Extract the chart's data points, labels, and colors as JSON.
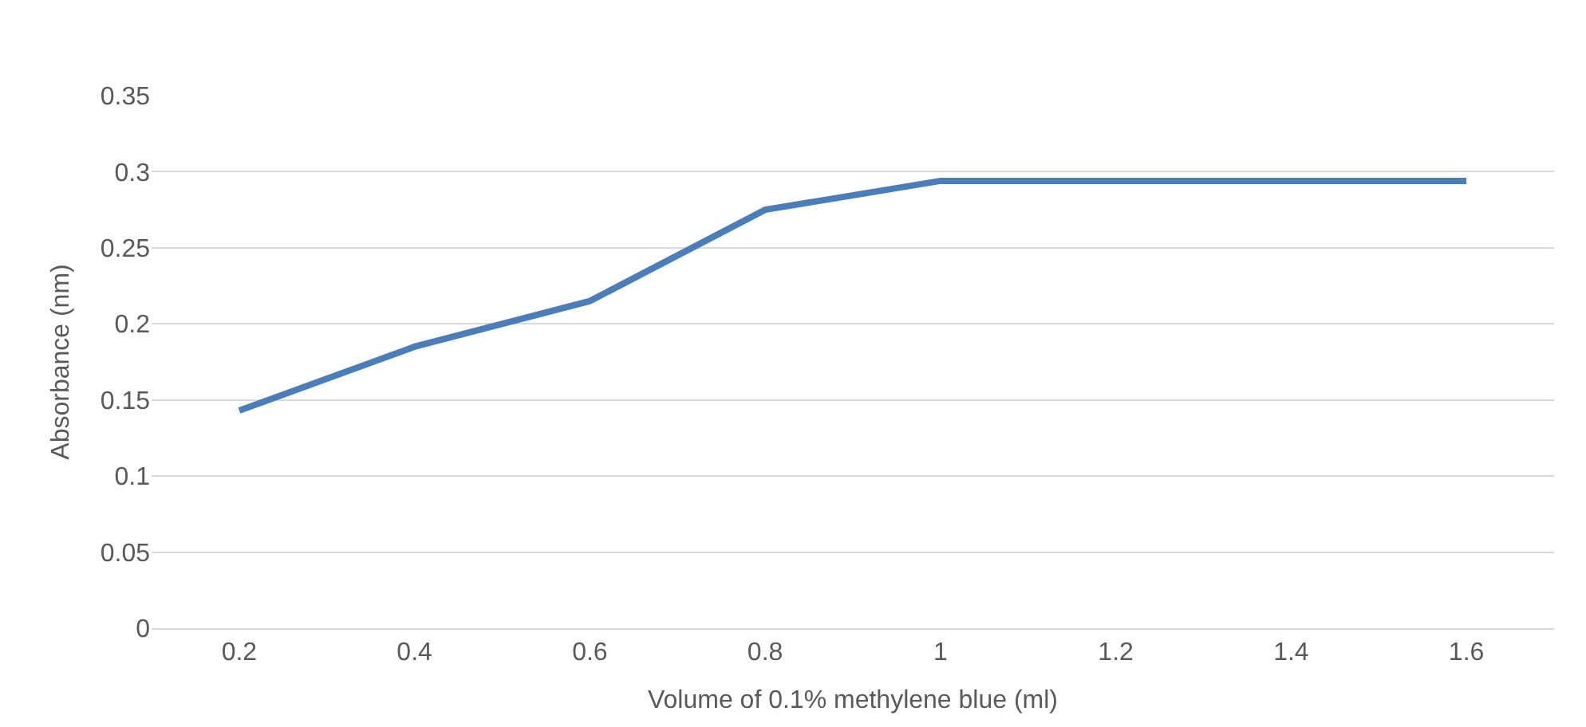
{
  "chart_data": {
    "type": "line",
    "xlabel": "Volume of 0.1% methylene blue (ml)",
    "ylabel": "Absorbance (nm)",
    "categories": [
      "0.2",
      "0.4",
      "0.6",
      "0.8",
      "1",
      "1.2",
      "1.4",
      "1.6"
    ],
    "series": [
      {
        "color": "#4a7ebb",
        "values": [
          0.143,
          0.185,
          0.215,
          0.275,
          0.294,
          0.294,
          0.294,
          0.294
        ]
      }
    ],
    "ylim": [
      0,
      0.35
    ],
    "yticks": [
      0,
      0.05,
      0.1,
      0.15,
      0.2,
      0.25,
      0.3,
      0.35
    ],
    "grid": "y",
    "marker": "none",
    "line_style": "solid"
  }
}
